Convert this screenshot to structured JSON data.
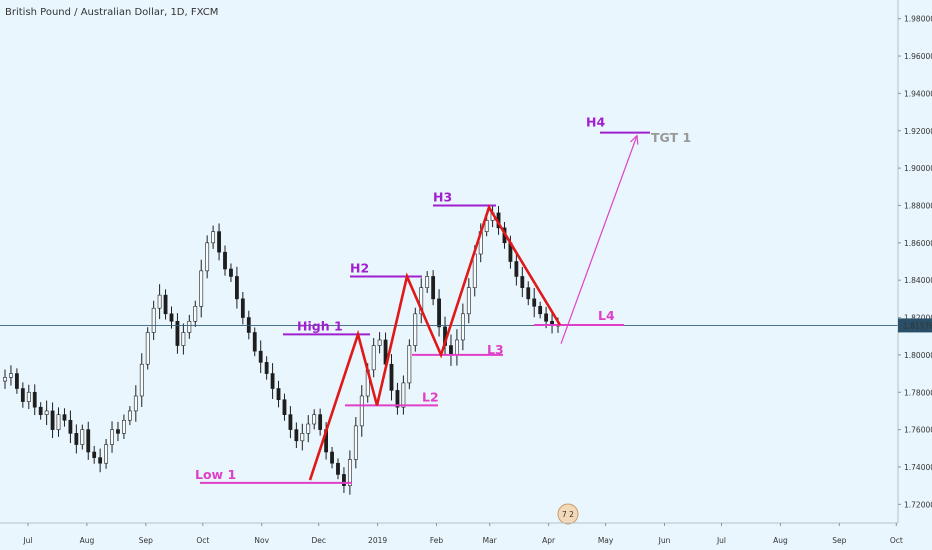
{
  "chart_data": {
    "type": "candlestick",
    "title": "British Pound / Australian Dollar, 1D, FXCM",
    "price_axis": {
      "range": [
        1.71,
        1.99
      ],
      "ticks": [
        "1.72000",
        "1.74000",
        "1.76000",
        "1.78000",
        "1.80000",
        "1.82000",
        "1.84000",
        "1.86000",
        "1.88000",
        "1.90000",
        "1.92000",
        "1.94000",
        "1.96000",
        "1.98000"
      ],
      "last_price": "1.81578"
    },
    "time_axis": {
      "labels": [
        "Jul",
        "Aug",
        "Sep",
        "Oct",
        "Nov",
        "Dec",
        "2019",
        "Feb",
        "Mar",
        "Apr",
        "May",
        "Jun",
        "Jul",
        "Aug",
        "Sep",
        "Oct"
      ]
    },
    "series": [
      {
        "values": [
          1.788,
          1.79,
          1.782,
          1.775,
          1.78,
          1.772,
          1.768,
          1.77,
          1.76,
          1.768,
          1.765,
          1.758,
          1.752,
          1.76,
          1.748,
          1.745,
          1.742,
          1.752,
          1.76,
          1.758,
          1.765,
          1.77,
          1.778,
          1.795,
          1.812,
          1.825,
          1.832,
          1.822,
          1.818,
          1.805,
          1.812,
          1.818,
          1.826,
          1.845,
          1.86,
          1.866,
          1.855,
          1.846,
          1.842,
          1.83,
          1.82,
          1.812,
          1.802,
          1.796,
          1.79,
          1.782,
          1.776,
          1.768,
          1.76,
          1.754,
          1.758,
          1.763,
          1.768,
          1.76,
          1.748,
          1.742,
          1.736,
          1.73,
          1.744,
          1.762,
          1.778,
          1.792,
          1.805,
          1.808,
          1.795,
          1.781,
          1.772,
          1.785,
          1.805,
          1.822,
          1.836,
          1.842,
          1.83,
          1.815,
          1.805,
          1.8,
          1.808,
          1.822,
          1.836,
          1.854,
          1.866,
          1.872,
          1.876,
          1.868,
          1.86,
          1.85,
          1.842,
          1.836,
          1.83,
          1.826,
          1.822,
          1.818,
          1.816,
          1.8158
        ]
      }
    ],
    "annotations": [
      {
        "label": "Low 1",
        "price": 1.7315,
        "color": "#e040c8"
      },
      {
        "label": "High 1",
        "price": 1.811,
        "color": "#a020d0"
      },
      {
        "label": "L2",
        "price": 1.773,
        "color": "#e040c8"
      },
      {
        "label": "H2",
        "price": 1.842,
        "color": "#a020d0"
      },
      {
        "label": "L3",
        "price": 1.8,
        "color": "#e040c8"
      },
      {
        "label": "H3",
        "price": 1.88,
        "color": "#a020d0"
      },
      {
        "label": "L4",
        "price": 1.816,
        "color": "#e040c8"
      },
      {
        "label": "H4",
        "price": 1.919,
        "color": "#a020d0"
      },
      {
        "label": "TGT 1",
        "price": 1.914,
        "color": "#999999"
      }
    ],
    "zigzag": {
      "color": "#e01818",
      "points": [
        1.733,
        1.811,
        1.773,
        1.842,
        1.8,
        1.879,
        1.816
      ]
    },
    "projection": {
      "from": 1.806,
      "to": 1.919,
      "color": "#e040c8"
    },
    "grid": false,
    "legend": "none",
    "logo_text": "7 2"
  }
}
